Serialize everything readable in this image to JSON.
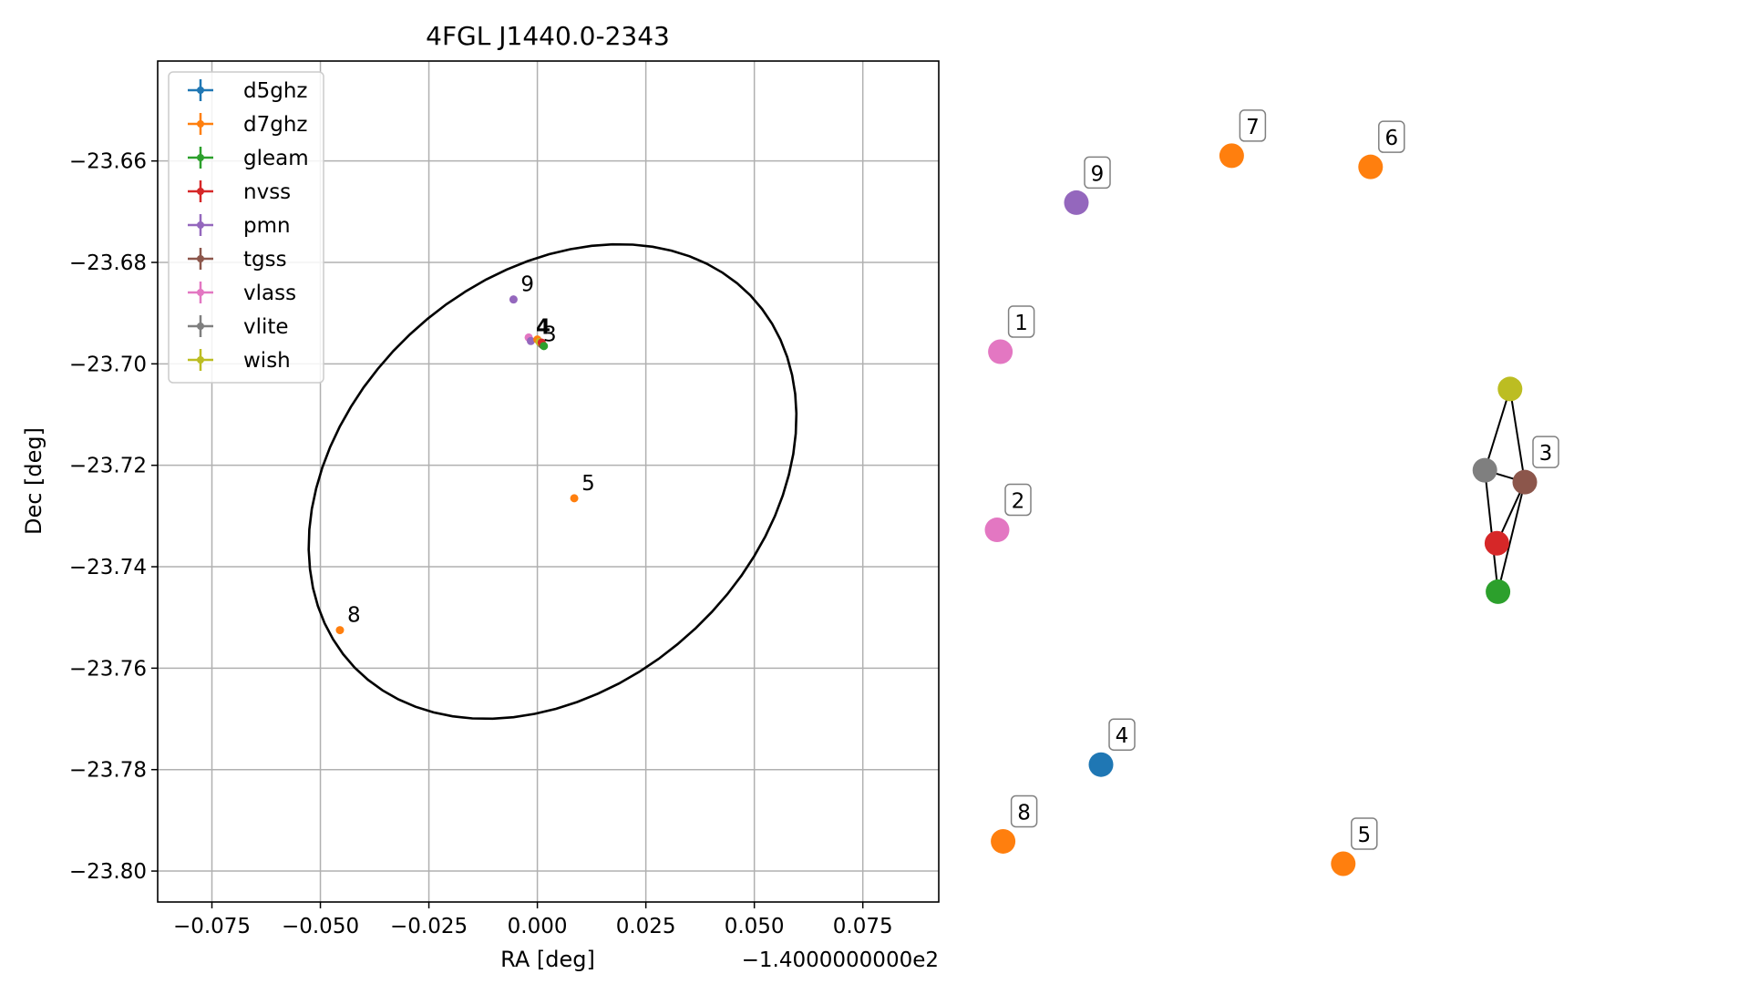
{
  "chart_data": [
    {
      "type": "scatter",
      "title": "4FGL J1440.0-2343",
      "xlabel": "RA [deg]",
      "ylabel": "Dec [deg]",
      "x_offset_label": "−1.4000000000e2",
      "xlim": [
        -0.0875,
        0.0925
      ],
      "ylim": [
        -23.8061,
        -23.6403
      ],
      "x_ticks": [
        -0.075,
        -0.05,
        -0.025,
        0.0,
        0.025,
        0.05,
        0.075
      ],
      "x_tick_labels": [
        "−0.075",
        "−0.050",
        "−0.025",
        "0.000",
        "0.025",
        "0.050",
        "0.075"
      ],
      "y_ticks": [
        -23.66,
        -23.68,
        -23.7,
        -23.72,
        -23.74,
        -23.76,
        -23.78,
        -23.8
      ],
      "y_tick_labels": [
        "−23.66",
        "−23.68",
        "−23.70",
        "−23.72",
        "−23.74",
        "−23.76",
        "−23.78",
        "−23.80"
      ],
      "grid": true,
      "legend_position": "top-left",
      "legend": [
        {
          "name": "d5ghz",
          "color": "#1f77b4"
        },
        {
          "name": "d7ghz",
          "color": "#ff7f0e"
        },
        {
          "name": "gleam",
          "color": "#2ca02c"
        },
        {
          "name": "nvss",
          "color": "#d62728"
        },
        {
          "name": "pmn",
          "color": "#9467bd"
        },
        {
          "name": "tgss",
          "color": "#8c564b"
        },
        {
          "name": "vlass",
          "color": "#e377c2"
        },
        {
          "name": "vlite",
          "color": "#7f7f7f"
        },
        {
          "name": "wish",
          "color": "#bcbd22"
        }
      ],
      "ellipse": {
        "center_x": 0.0035,
        "center_y": -23.7232,
        "semi_major": 0.0595,
        "semi_minor": 0.0425,
        "angle_deg": 28,
        "color": "#000000"
      },
      "points": [
        {
          "label": "9",
          "x": -0.0055,
          "y": -23.6873,
          "color": "#9467bd"
        },
        {
          "label": "5",
          "x": 0.0085,
          "y": -23.7265,
          "color": "#ff7f0e"
        },
        {
          "label": "8",
          "x": -0.0455,
          "y": -23.7525,
          "color": "#ff7f0e"
        },
        {
          "label": "",
          "x": -0.002,
          "y": -23.6948,
          "color": "#e377c2"
        },
        {
          "label": "",
          "x": -0.0015,
          "y": -23.6955,
          "color": "#9467bd"
        },
        {
          "label": "",
          "x": 0.0,
          "y": -23.6952,
          "color": "#ff7f0e"
        },
        {
          "label": "",
          "x": 0.0008,
          "y": -23.696,
          "color": "#7f7f7f"
        },
        {
          "label": "",
          "x": 0.0005,
          "y": -23.6957,
          "color": "#bcbd22"
        },
        {
          "label": "",
          "x": 0.0012,
          "y": -23.6963,
          "color": "#8c564b"
        },
        {
          "label": "",
          "x": 0.001,
          "y": -23.6958,
          "color": "#d62728"
        },
        {
          "label": "",
          "x": 0.0015,
          "y": -23.6965,
          "color": "#2ca02c"
        }
      ],
      "cluster_label_glyph": "4"
    },
    {
      "type": "diagram",
      "nodes": [
        {
          "label": "9",
          "nx": 0.09,
          "ny": 0.113,
          "color": "#9467bd"
        },
        {
          "label": "7",
          "nx": 0.374,
          "ny": 0.05,
          "color": "#ff7f0e"
        },
        {
          "label": "6",
          "nx": 0.628,
          "ny": 0.065,
          "color": "#ff7f0e"
        },
        {
          "label": "1",
          "nx": -0.049,
          "ny": 0.313,
          "color": "#e377c2"
        },
        {
          "label": "2",
          "nx": -0.055,
          "ny": 0.552,
          "color": "#e377c2"
        },
        {
          "label": "4",
          "nx": 0.135,
          "ny": 0.867,
          "color": "#1f77b4"
        },
        {
          "label": "8",
          "nx": -0.044,
          "ny": 0.97,
          "color": "#ff7f0e"
        },
        {
          "label": "5",
          "nx": 0.578,
          "ny": 1.0,
          "color": "#ff7f0e"
        },
        {
          "label": "",
          "nx": 0.883,
          "ny": 0.363,
          "color": "#bcbd22"
        },
        {
          "label": "",
          "nx": 0.837,
          "ny": 0.472,
          "color": "#7f7f7f"
        },
        {
          "label": "3",
          "nx": 0.91,
          "ny": 0.488,
          "color": "#8c564b"
        },
        {
          "label": "",
          "nx": 0.859,
          "ny": 0.57,
          "color": "#d62728"
        },
        {
          "label": "",
          "nx": 0.861,
          "ny": 0.635,
          "color": "#2ca02c"
        }
      ],
      "edges": [
        [
          8,
          9
        ],
        [
          8,
          10
        ],
        [
          9,
          10
        ],
        [
          9,
          12
        ],
        [
          10,
          11
        ],
        [
          10,
          12
        ]
      ]
    }
  ]
}
